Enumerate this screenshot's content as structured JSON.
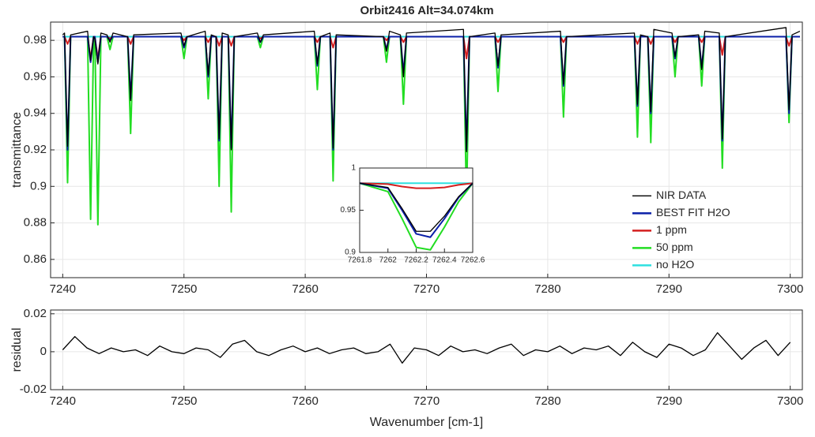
{
  "chart_data": [
    {
      "type": "line",
      "title": "Orbit2416 Alt=34.074km",
      "y_label": "transmittance",
      "xlim": [
        7239,
        7301
      ],
      "ylim": [
        0.85,
        0.99
      ],
      "xticks": [
        7240,
        7250,
        7260,
        7270,
        7280,
        7290,
        7300
      ],
      "yticks": [
        0.86,
        0.88,
        0.9,
        0.92,
        0.94,
        0.96,
        0.98
      ],
      "grid": true,
      "legend_position": "right",
      "x": [
        7240.0,
        7240.15,
        7240.4,
        7240.65,
        7242.05,
        7242.3,
        7242.55,
        7242.65,
        7242.9,
        7243.15,
        7243.65,
        7243.9,
        7244.15,
        7245.35,
        7245.6,
        7245.85,
        7249.75,
        7250.0,
        7250.25,
        7251.75,
        7252.0,
        7252.25,
        7252.65,
        7252.9,
        7253.15,
        7253.65,
        7253.9,
        7254.15,
        7256.05,
        7256.3,
        7256.55,
        7260.75,
        7261.0,
        7261.25,
        7262.05,
        7262.3,
        7262.55,
        7266.45,
        7266.7,
        7266.95,
        7267.85,
        7268.1,
        7268.35,
        7273.05,
        7273.3,
        7273.55,
        7275.65,
        7275.9,
        7276.15,
        7281.05,
        7281.3,
        7281.55,
        7287.15,
        7287.4,
        7287.65,
        7288.25,
        7288.5,
        7288.75,
        7290.25,
        7290.5,
        7290.75,
        7292.45,
        7292.7,
        7292.95,
        7294.15,
        7294.4,
        7294.65,
        7299.65,
        7299.9,
        7300.15,
        7300.8
      ],
      "series": [
        {
          "name": "NIR DATA",
          "color": "#000000",
          "values": [
            0.983,
            0.984,
            0.922,
            0.983,
            0.985,
            0.969,
            0.982,
            0.981,
            0.967,
            0.984,
            0.983,
            0.979,
            0.984,
            0.982,
            0.947,
            0.983,
            0.984,
            0.977,
            0.982,
            0.985,
            0.961,
            0.983,
            0.982,
            0.926,
            0.984,
            0.983,
            0.92,
            0.982,
            0.984,
            0.979,
            0.983,
            0.985,
            0.967,
            0.982,
            0.984,
            0.921,
            0.983,
            0.982,
            0.974,
            0.985,
            0.983,
            0.96,
            0.984,
            0.986,
            0.919,
            0.982,
            0.984,
            0.966,
            0.983,
            0.985,
            0.956,
            0.982,
            0.984,
            0.945,
            0.983,
            0.982,
            0.941,
            0.986,
            0.984,
            0.971,
            0.982,
            0.983,
            0.964,
            0.985,
            0.984,
            0.926,
            0.982,
            0.987,
            0.942,
            0.983,
            0.985
          ]
        },
        {
          "name": "BEST FIT H2O",
          "color": "#0a1fa8",
          "values": [
            0.982,
            0.982,
            0.92,
            0.982,
            0.982,
            0.968,
            0.982,
            0.982,
            0.968,
            0.982,
            0.982,
            0.98,
            0.982,
            0.982,
            0.948,
            0.982,
            0.982,
            0.976,
            0.982,
            0.982,
            0.96,
            0.982,
            0.982,
            0.925,
            0.982,
            0.982,
            0.921,
            0.982,
            0.982,
            0.979,
            0.982,
            0.982,
            0.966,
            0.982,
            0.982,
            0.92,
            0.982,
            0.982,
            0.975,
            0.982,
            0.982,
            0.962,
            0.982,
            0.982,
            0.92,
            0.982,
            0.982,
            0.965,
            0.982,
            0.982,
            0.955,
            0.982,
            0.982,
            0.944,
            0.982,
            0.982,
            0.94,
            0.982,
            0.982,
            0.97,
            0.982,
            0.982,
            0.965,
            0.982,
            0.982,
            0.925,
            0.982,
            0.982,
            0.94,
            0.982,
            0.982
          ]
        },
        {
          "name": "1 ppm",
          "color": "#d41f1f",
          "values": [
            0.982,
            0.982,
            0.978,
            0.982,
            0.982,
            0.97,
            0.982,
            0.982,
            0.97,
            0.982,
            0.982,
            0.981,
            0.982,
            0.982,
            0.978,
            0.982,
            0.982,
            0.98,
            0.982,
            0.982,
            0.979,
            0.982,
            0.982,
            0.977,
            0.982,
            0.982,
            0.977,
            0.982,
            0.982,
            0.981,
            0.982,
            0.982,
            0.979,
            0.982,
            0.982,
            0.976,
            0.982,
            0.982,
            0.98,
            0.982,
            0.982,
            0.979,
            0.982,
            0.982,
            0.97,
            0.982,
            0.982,
            0.979,
            0.982,
            0.982,
            0.979,
            0.982,
            0.982,
            0.978,
            0.982,
            0.982,
            0.978,
            0.982,
            0.982,
            0.979,
            0.982,
            0.982,
            0.979,
            0.982,
            0.982,
            0.972,
            0.982,
            0.982,
            0.977,
            0.982,
            0.982
          ]
        },
        {
          "name": "50 ppm",
          "color": "#22dd22",
          "values": [
            0.982,
            0.982,
            0.902,
            0.982,
            0.982,
            0.882,
            0.982,
            0.982,
            0.879,
            0.982,
            0.982,
            0.975,
            0.982,
            0.982,
            0.929,
            0.982,
            0.982,
            0.97,
            0.982,
            0.982,
            0.948,
            0.982,
            0.982,
            0.9,
            0.982,
            0.982,
            0.886,
            0.982,
            0.982,
            0.976,
            0.982,
            0.982,
            0.953,
            0.982,
            0.982,
            0.903,
            0.982,
            0.982,
            0.968,
            0.982,
            0.982,
            0.945,
            0.982,
            0.982,
            0.89,
            0.982,
            0.982,
            0.952,
            0.982,
            0.982,
            0.938,
            0.982,
            0.982,
            0.927,
            0.982,
            0.982,
            0.924,
            0.982,
            0.982,
            0.96,
            0.982,
            0.982,
            0.955,
            0.982,
            0.982,
            0.91,
            0.982,
            0.982,
            0.935,
            0.982,
            0.982
          ]
        },
        {
          "name": "no H2O",
          "color": "#2ee0e0",
          "values": [
            0.982,
            0.982,
            0.982,
            0.982,
            0.982,
            0.982,
            0.982,
            0.982,
            0.982,
            0.982,
            0.982,
            0.982,
            0.982,
            0.982,
            0.982,
            0.982,
            0.982,
            0.982,
            0.982,
            0.982,
            0.982,
            0.982,
            0.982,
            0.982,
            0.982,
            0.982,
            0.982,
            0.982,
            0.982,
            0.982,
            0.982,
            0.982,
            0.982,
            0.982,
            0.982,
            0.982,
            0.982,
            0.982,
            0.982,
            0.982,
            0.982,
            0.982,
            0.982,
            0.982,
            0.982,
            0.982,
            0.982,
            0.982,
            0.982,
            0.982,
            0.982,
            0.982,
            0.982,
            0.982,
            0.982,
            0.982,
            0.982,
            0.982,
            0.982,
            0.982,
            0.982,
            0.982,
            0.982,
            0.982,
            0.982,
            0.982,
            0.982,
            0.982,
            0.982,
            0.982,
            0.982
          ]
        }
      ]
    },
    {
      "type": "line",
      "x_label": "Wavenumber [cm-1]",
      "y_label": "residual",
      "xlim": [
        7239,
        7301
      ],
      "ylim": [
        -0.02,
        0.022
      ],
      "xticks": [
        7240,
        7250,
        7260,
        7270,
        7280,
        7290,
        7300
      ],
      "yticks": [
        -0.02,
        0,
        0.02
      ],
      "grid": true,
      "x": [
        7240,
        7241,
        7242,
        7243,
        7244,
        7245,
        7246,
        7247,
        7248,
        7249,
        7250,
        7251,
        7252,
        7253,
        7254,
        7255,
        7256,
        7257,
        7258,
        7259,
        7260,
        7261,
        7262,
        7263,
        7264,
        7265,
        7266,
        7267,
        7268,
        7269,
        7270,
        7271,
        7272,
        7273,
        7274,
        7275,
        7276,
        7277,
        7278,
        7279,
        7280,
        7281,
        7282,
        7283,
        7284,
        7285,
        7286,
        7287,
        7288,
        7289,
        7290,
        7291,
        7292,
        7293,
        7294,
        7295,
        7296,
        7297,
        7298,
        7299,
        7300
      ],
      "series": [
        {
          "color": "#000000",
          "values": [
            0.001,
            0.008,
            0.002,
            -0.001,
            0.002,
            0,
            0.001,
            -0.002,
            0.003,
            0,
            -0.001,
            0.002,
            0.001,
            -0.003,
            0.004,
            0.006,
            0,
            -0.002,
            0.001,
            0.003,
            0,
            0.002,
            -0.001,
            0.001,
            0.002,
            -0.001,
            0,
            0.004,
            -0.006,
            0.002,
            0.001,
            -0.002,
            0.003,
            0,
            0.001,
            -0.001,
            0.002,
            0.004,
            -0.002,
            0.001,
            0,
            0.003,
            -0.001,
            0.002,
            0.001,
            0.003,
            -0.002,
            0.005,
            0,
            -0.003,
            0.004,
            0.002,
            -0.002,
            0.001,
            0.01,
            0.003,
            -0.004,
            0.002,
            0.006,
            -0.002,
            0.005
          ]
        }
      ]
    },
    {
      "type": "line",
      "xlim": [
        7261.8,
        7262.6
      ],
      "ylim": [
        0.9,
        1
      ],
      "xticks": [
        7261.8,
        7262,
        7262.2,
        7262.4,
        7262.6
      ],
      "yticks": [
        0.9,
        0.95,
        1
      ],
      "grid": false,
      "x": [
        7261.8,
        7262.0,
        7262.1,
        7262.2,
        7262.3,
        7262.4,
        7262.5,
        7262.6
      ],
      "series": [
        {
          "color": "#000000",
          "values": [
            0.982,
            0.977,
            0.952,
            0.925,
            0.925,
            0.943,
            0.966,
            0.982
          ]
        },
        {
          "color": "#0a1fa8",
          "values": [
            0.982,
            0.976,
            0.95,
            0.922,
            0.918,
            0.94,
            0.965,
            0.982
          ]
        },
        {
          "color": "#d41f1f",
          "values": [
            0.982,
            0.981,
            0.978,
            0.976,
            0.976,
            0.977,
            0.98,
            0.982
          ]
        },
        {
          "color": "#22dd22",
          "values": [
            0.982,
            0.972,
            0.94,
            0.906,
            0.903,
            0.93,
            0.96,
            0.982
          ]
        },
        {
          "color": "#2ee0e0",
          "values": [
            0.982,
            0.982,
            0.982,
            0.982,
            0.982,
            0.982,
            0.982,
            0.982
          ]
        }
      ]
    }
  ]
}
